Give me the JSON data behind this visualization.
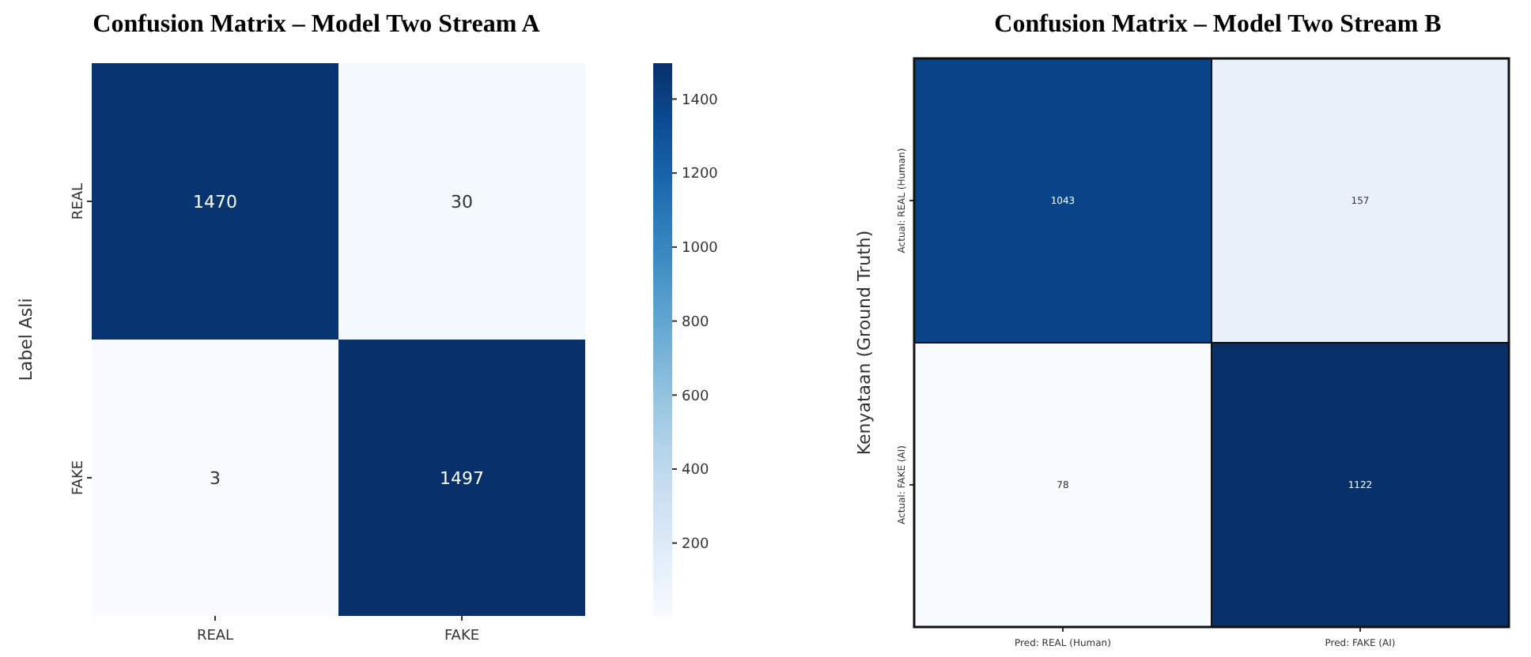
{
  "chart_data": [
    {
      "type": "heatmap",
      "title": "Confusion Matrix – Model Two Stream A",
      "ylabel": "Label Asli",
      "categories": [
        "REAL",
        "FAKE"
      ],
      "y_categories": [
        "REAL",
        "FAKE"
      ],
      "cells": [
        [
          1470,
          30
        ],
        [
          3,
          1497
        ]
      ],
      "data_labels": true,
      "clim": [
        3,
        1497
      ],
      "cticks": [
        200,
        400,
        600,
        800,
        1000,
        1200,
        1400
      ]
    },
    {
      "type": "heatmap",
      "title": "Confusion Matrix – Model Two Stream B",
      "ylabel": "Kenyataan (Ground Truth)",
      "categories": [
        "Pred: REAL (Human)",
        "Pred: FAKE (AI)"
      ],
      "y_categories": [
        "Actual: REAL (Human)",
        "Actual: FAKE (AI)"
      ],
      "cells": [
        [
          1043,
          157
        ],
        [
          78,
          1122
        ]
      ],
      "data_labels": true
    }
  ]
}
